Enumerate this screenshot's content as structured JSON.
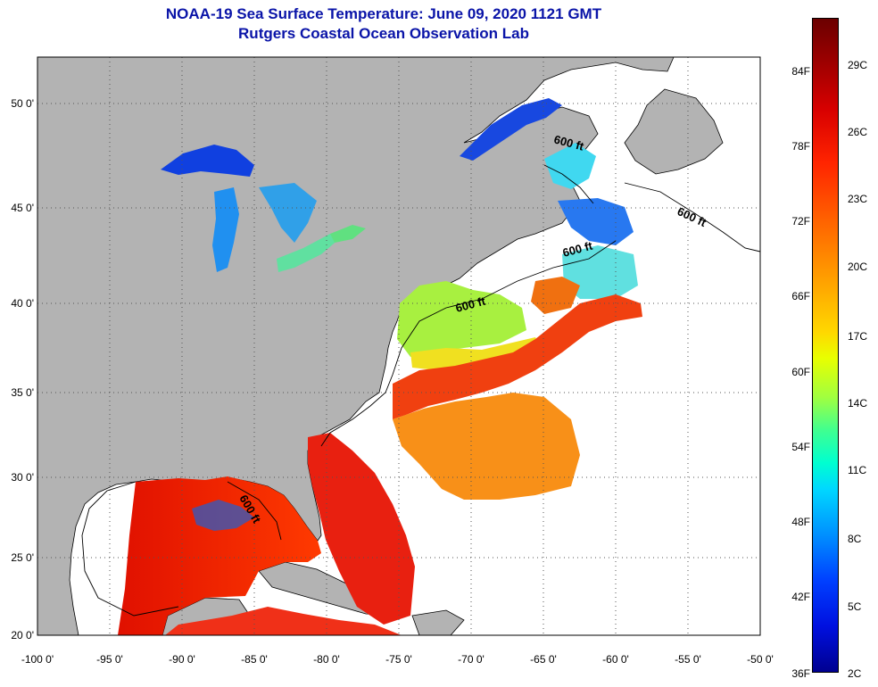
{
  "title": "NOAA-19 Sea Surface Temperature:  June 09, 2020 1121 GMT",
  "subtitle": "Rutgers Coastal Ocean Observation Lab",
  "lat_labels": [
    "50 0'",
    "45 0'",
    "40 0'",
    "35 0'",
    "30 0'",
    "25 0'",
    "20 0'"
  ],
  "lon_labels": [
    "-100 0'",
    "-95 0'",
    "-90 0'",
    "-85 0'",
    "-80 0'",
    "-75 0'",
    "-70 0'",
    "-65 0'",
    "-60 0'",
    "-55 0'",
    "-50 0'"
  ],
  "contour_labels": [
    "600 ft",
    "600 ft",
    "600 ft",
    "600 ft",
    "600 ft"
  ],
  "colorbar": {
    "fahrenheit": [
      "84F",
      "78F",
      "72F",
      "66F",
      "60F",
      "54F",
      "48F",
      "42F",
      "36F"
    ],
    "celsius": [
      "29C",
      "26C",
      "23C",
      "20C",
      "17C",
      "14C",
      "11C",
      "8C",
      "5C",
      "2C"
    ]
  },
  "colors": {
    "title": "#0a14a8",
    "land": "#b3b3b3",
    "ocean_nodata": "#ffffff"
  },
  "map_extent": {
    "lon": [
      -100,
      -50
    ],
    "lat": [
      20,
      52
    ]
  }
}
